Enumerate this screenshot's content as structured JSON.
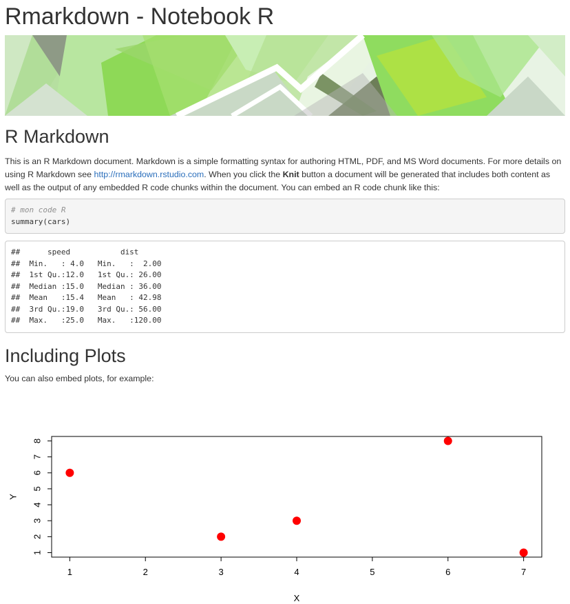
{
  "document": {
    "title": "Rmarkdown - Notebook R"
  },
  "section1": {
    "heading": "R Markdown",
    "para_part1": "This is an R Markdown document. Markdown is a simple formatting syntax for authoring HTML, PDF, and MS Word documents. For more details on using R Markdown see ",
    "link_text": "http://rmarkdown.rstudio.com",
    "para_part2": ". When you click the ",
    "bold_text": "Knit",
    "para_part3": " button a document will be generated that includes both content as well as the output of any embedded R code chunks within the document. You can embed an R code chunk like this:",
    "code_comment": "# mon code R",
    "code_line": "summary(cars)",
    "output_lines": [
      "##      speed           dist       ",
      "##  Min.   : 4.0   Min.   :  2.00  ",
      "##  1st Qu.:12.0   1st Qu.: 26.00  ",
      "##  Median :15.0   Median : 36.00  ",
      "##  Mean   :15.4   Mean   : 42.98  ",
      "##  3rd Qu.:19.0   3rd Qu.: 56.00  ",
      "##  Max.   :25.0   Max.   :120.00  "
    ]
  },
  "section2": {
    "heading": "Including Plots",
    "para": "You can also embed plots, for example:"
  },
  "colors": {
    "link": "#2a6ebb",
    "point": "#ff0000"
  },
  "chart_data": {
    "type": "scatter",
    "title": "",
    "xlabel": "X",
    "ylabel": "Y",
    "x": [
      1,
      3,
      4,
      6,
      7
    ],
    "y": [
      6,
      2,
      3,
      8,
      1
    ],
    "xlim": [
      0.76,
      7.24
    ],
    "ylim": [
      0.72,
      8.28
    ],
    "xticks": [
      1,
      2,
      3,
      4,
      5,
      6,
      7
    ],
    "yticks": [
      1,
      2,
      3,
      4,
      5,
      6,
      7,
      8
    ],
    "point_color": "#ff0000",
    "grid": false,
    "legend": "none"
  }
}
